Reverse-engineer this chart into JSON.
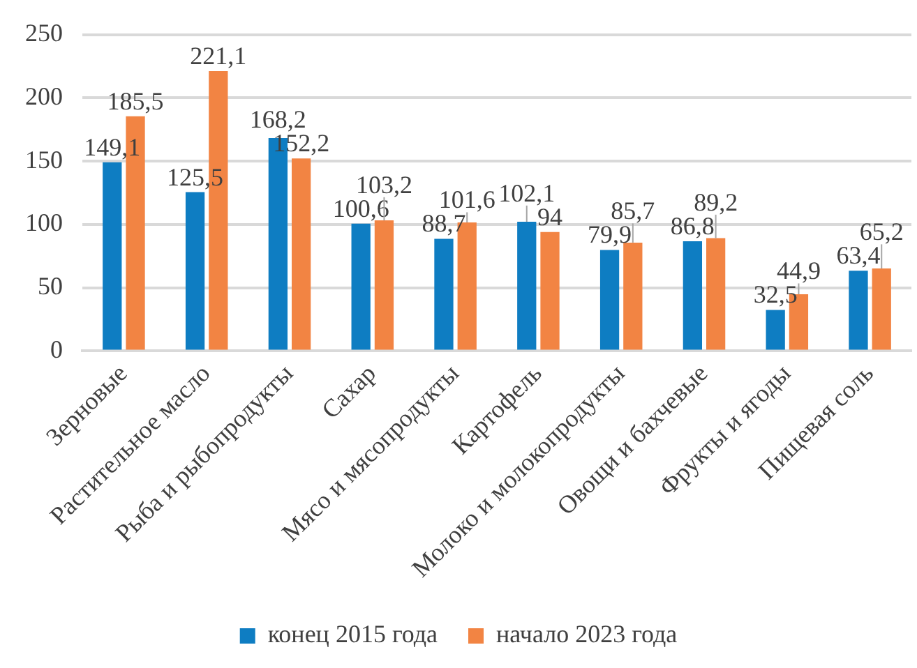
{
  "chart_data": {
    "type": "bar",
    "categories": [
      "Зерновые",
      "Растительное масло",
      "Рыба и рыбопродукты",
      "Сахар",
      "Мясо и мясопродукты",
      "Картофель",
      "Молоко и молокопродукты",
      "Овощи и бахчевые",
      "Фрукты и ягоды",
      "Пищевая соль"
    ],
    "series": [
      {
        "name": "конец 2015 года",
        "color": "#0e7dc2",
        "values": [
          149.1,
          125.5,
          168.2,
          100.6,
          88.7,
          102.1,
          79.9,
          86.8,
          32.5,
          63.4
        ],
        "value_labels": [
          "149,1",
          "125,5",
          "168,2",
          "100,6",
          "88,7",
          "102,1",
          "79,9",
          "86,8",
          "32,5",
          "63,4"
        ]
      },
      {
        "name": "начало 2023 года",
        "color": "#f28443",
        "values": [
          185.5,
          221.1,
          152.2,
          103.2,
          101.6,
          94,
          85.7,
          89.2,
          44.9,
          65.2
        ],
        "value_labels": [
          "185,5",
          "221,1",
          "152,2",
          "103,2",
          "101,6",
          "94",
          "85,7",
          "89,2",
          "44,9",
          "65,2"
        ]
      }
    ],
    "ylim": [
      0,
      250
    ],
    "yticks": [
      0,
      50,
      100,
      150,
      200,
      250
    ],
    "grid": "y",
    "legend": "bottom"
  }
}
